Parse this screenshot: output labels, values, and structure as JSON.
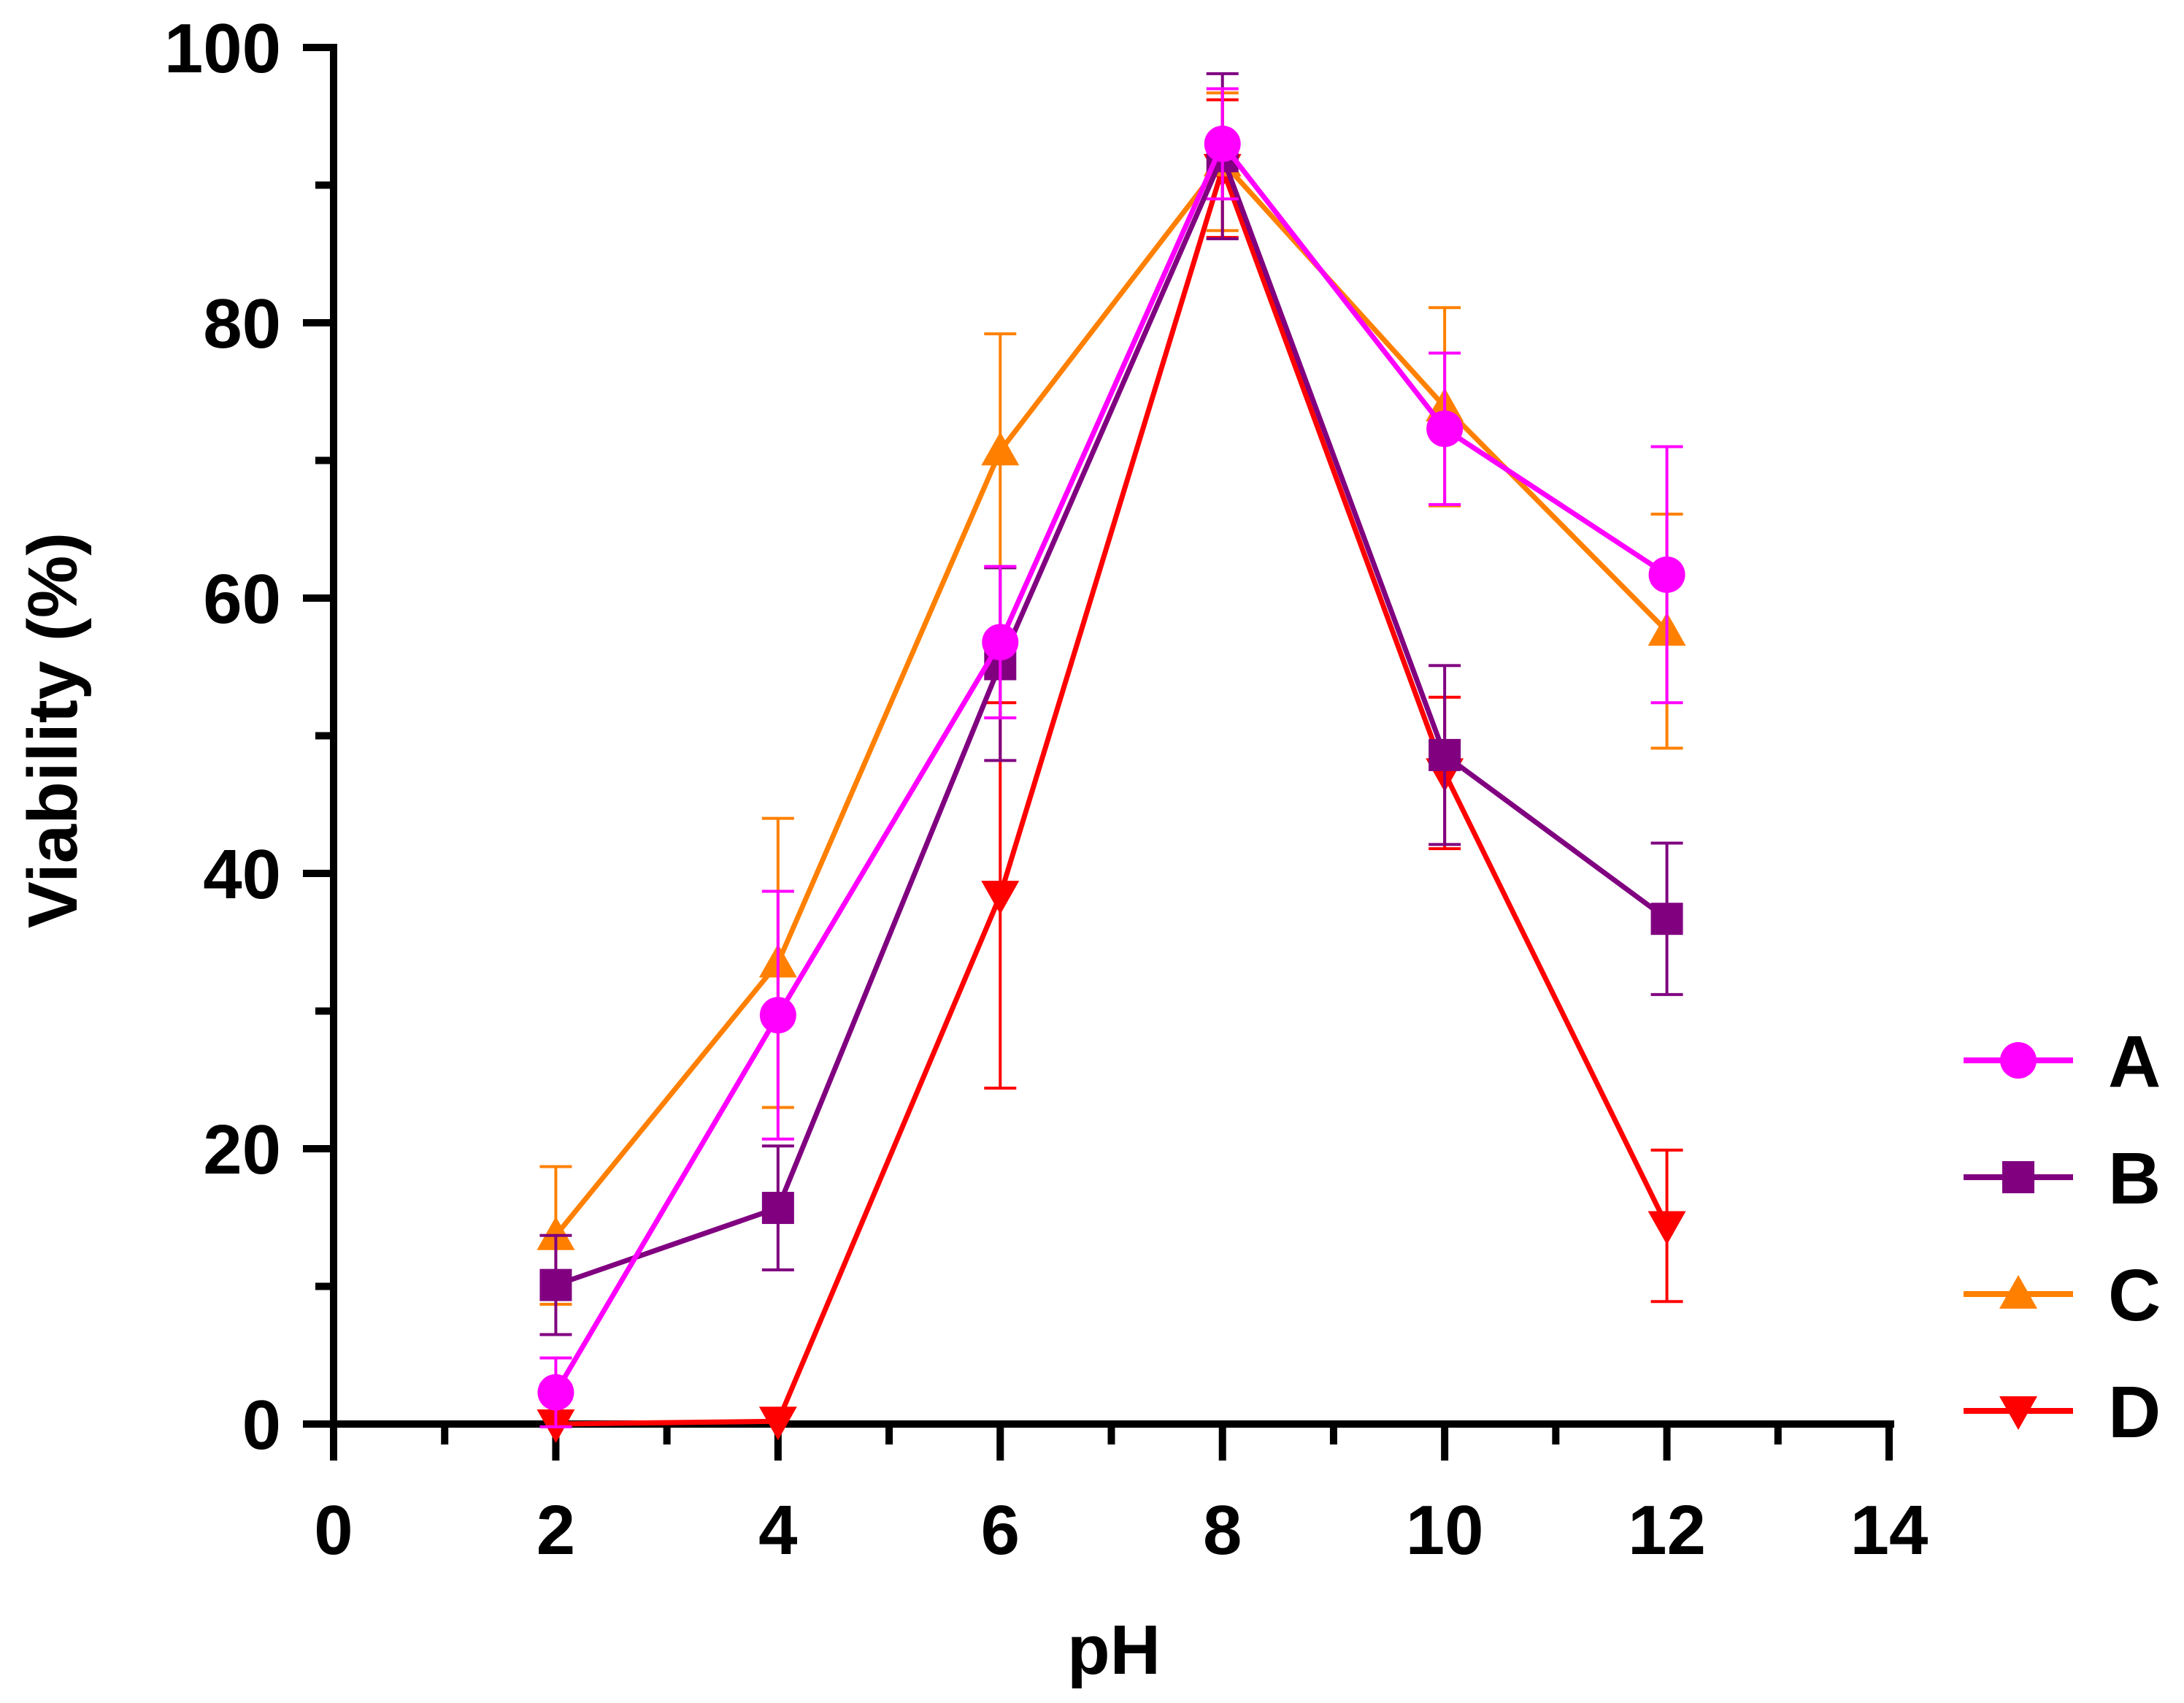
{
  "chart_data": {
    "type": "line",
    "title": "",
    "xlabel": "pH",
    "ylabel": "Viability (%)",
    "xlim": [
      0,
      14
    ],
    "ylim": [
      0,
      100
    ],
    "x_ticks": [
      0,
      2,
      4,
      6,
      8,
      10,
      12,
      14
    ],
    "x_tick_labels": [
      "0",
      "2",
      "4",
      "6",
      "8",
      "10",
      "12",
      "14"
    ],
    "x_minor_ticks": [
      1,
      3,
      5,
      7,
      9,
      11,
      13
    ],
    "y_ticks": [
      0,
      20,
      40,
      60,
      80,
      100
    ],
    "y_tick_labels": [
      "0",
      "20",
      "40",
      "60",
      "80",
      "100"
    ],
    "y_minor_ticks": [
      10,
      30,
      50,
      70,
      90
    ],
    "grid": false,
    "legend_position": "right",
    "x": [
      2,
      4,
      6,
      8,
      10,
      12
    ],
    "series": [
      {
        "name": "A",
        "color": "#ff00ff",
        "marker": "circle",
        "values": [
          2.3,
          29.7,
          56.8,
          93.0,
          72.3,
          61.7
        ],
        "errors": [
          2.5,
          9.0,
          5.5,
          4.0,
          5.5,
          9.3
        ]
      },
      {
        "name": "B",
        "color": "#800080",
        "marker": "square",
        "values": [
          10.1,
          15.7,
          55.2,
          92.1,
          48.6,
          36.7
        ],
        "errors": [
          3.6,
          4.5,
          7.0,
          6.0,
          6.5,
          5.5
        ]
      },
      {
        "name": "C",
        "color": "#ff8000",
        "marker": "triangle-up",
        "values": [
          13.7,
          33.5,
          70.7,
          91.7,
          73.9,
          57.6
        ],
        "errors": [
          5.0,
          10.5,
          8.5,
          5.0,
          7.2,
          8.5
        ]
      },
      {
        "name": "D",
        "color": "#ff0000",
        "marker": "triangle-down",
        "values": [
          0.0,
          0.2,
          38.4,
          91.2,
          47.3,
          14.4
        ],
        "errors": [
          0.0,
          0.0,
          14.0,
          5.0,
          5.5,
          5.5
        ]
      }
    ]
  }
}
